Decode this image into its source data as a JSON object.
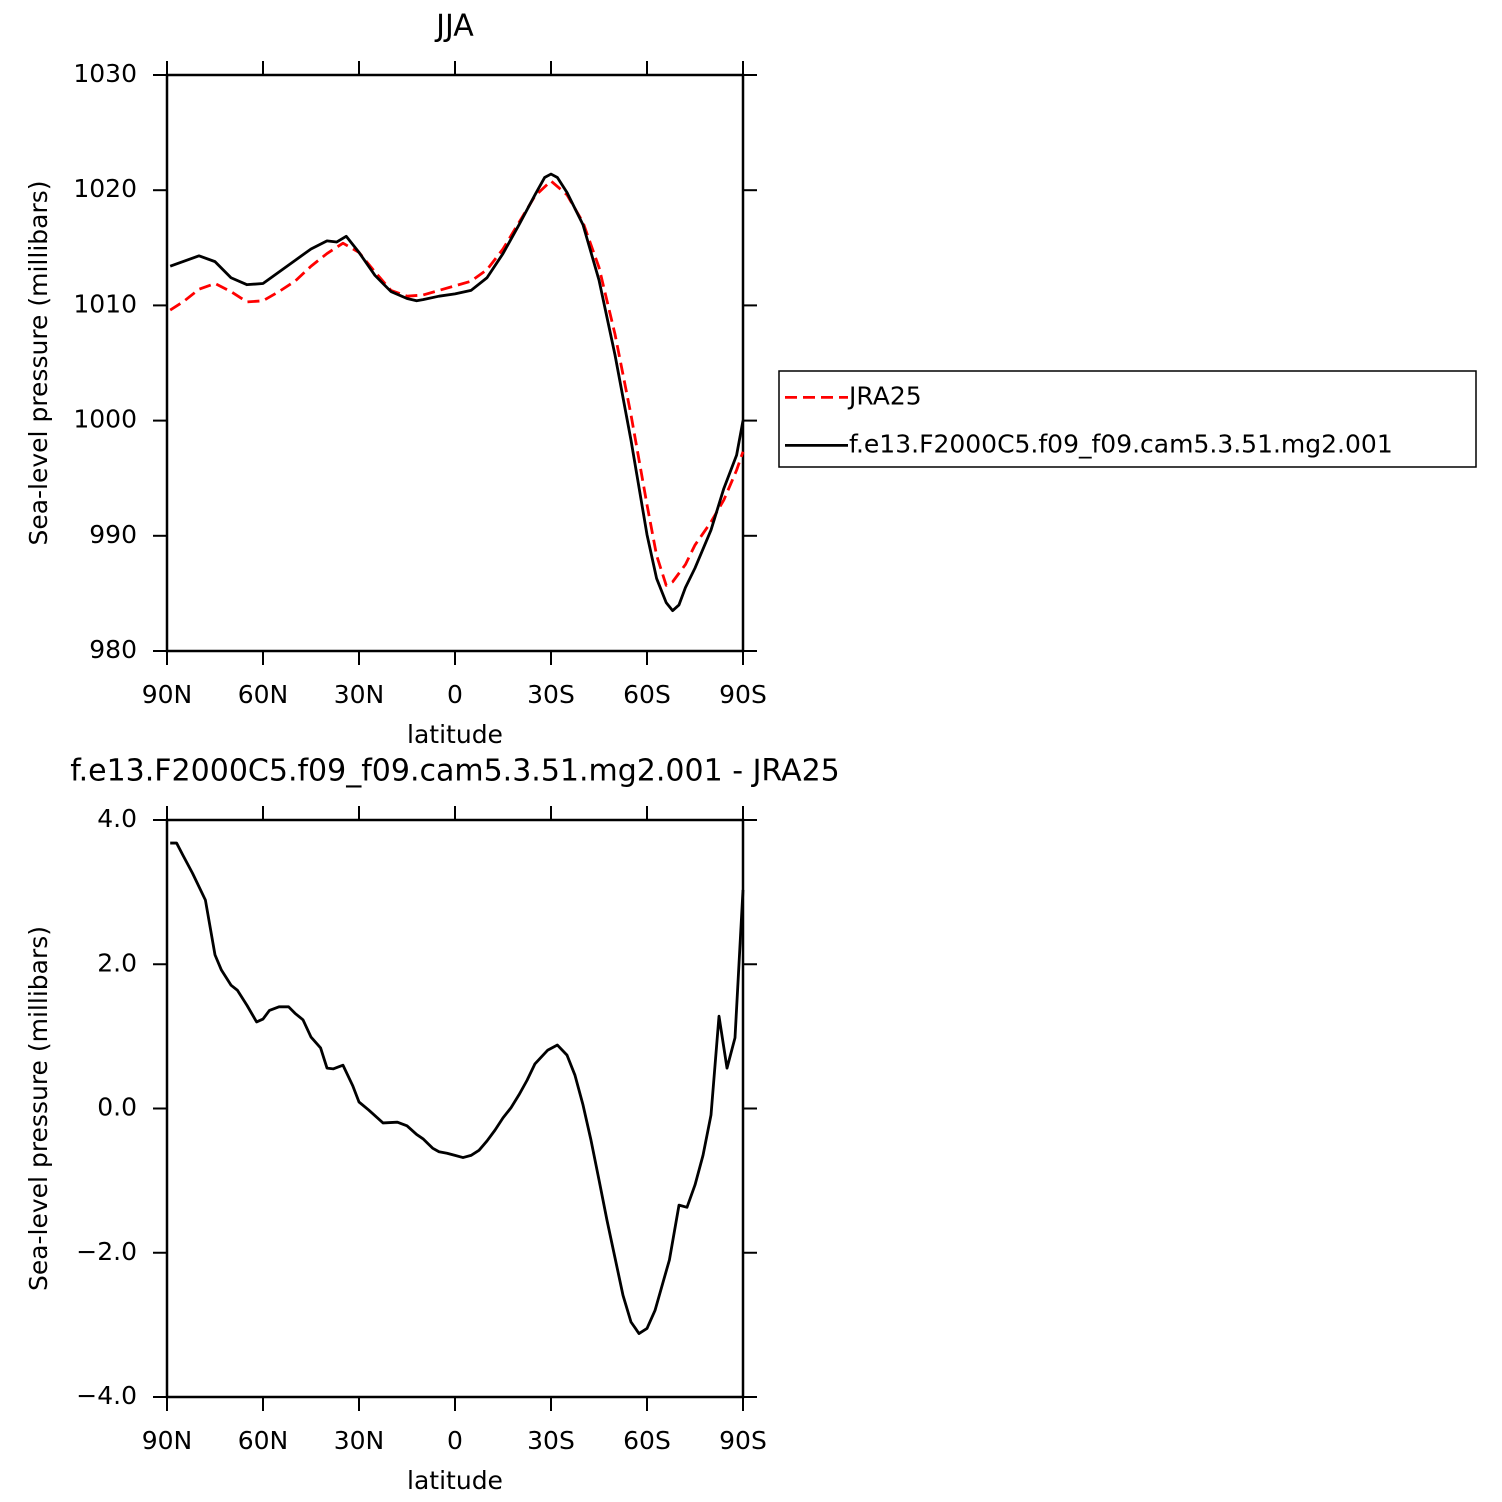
{
  "chart_data": [
    {
      "type": "line",
      "title": "JJA",
      "xlabel": "latitude",
      "ylabel": "Sea-level pressure (millibars)",
      "xlim": [
        90,
        -90
      ],
      "xticks": [
        {
          "value": 90,
          "label": "90N"
        },
        {
          "value": 60,
          "label": "60N"
        },
        {
          "value": 30,
          "label": "30N"
        },
        0,
        {
          "value": -30,
          "label": "30S"
        },
        {
          "value": -60,
          "label": "60S"
        },
        {
          "value": -90,
          "label": "90S"
        }
      ],
      "ylim": [
        980,
        1030
      ],
      "yticks": [
        980,
        990,
        1000,
        1010,
        1020,
        1030
      ],
      "legend": "right",
      "series": [
        {
          "name": "JRA25",
          "color": "#ff0000",
          "style": "dashed",
          "x": [
            89,
            85,
            80,
            75,
            70,
            65,
            60,
            55,
            50,
            45,
            40,
            35,
            30,
            25,
            20,
            15,
            10,
            5,
            0,
            -5,
            -10,
            -15,
            -20,
            -25,
            -30,
            -35,
            -40,
            -45,
            -50,
            -55,
            -60,
            -63,
            -66,
            -68,
            -72,
            -75,
            -80,
            -84,
            -88,
            -90
          ],
          "values": [
            1009.6,
            1010.3,
            1011.4,
            1011.9,
            1011.2,
            1010.3,
            1010.4,
            1011.2,
            1012.1,
            1013.4,
            1014.5,
            1015.4,
            1014.6,
            1012.9,
            1011.3,
            1010.8,
            1010.9,
            1011.3,
            1011.7,
            1012.1,
            1013.1,
            1014.9,
            1017.2,
            1019.5,
            1020.8,
            1019.6,
            1017.2,
            1013.3,
            1007.5,
            1000.5,
            992.7,
            988.3,
            985.7,
            986.0,
            987.5,
            989.2,
            991.2,
            993.1,
            995.7,
            997.3
          ]
        },
        {
          "name": "f.e13.F2000C5.f09_f09.cam5.3.51.mg2.001",
          "color": "#000000",
          "style": "solid",
          "x": [
            89,
            80,
            75,
            70,
            65,
            60,
            55,
            50,
            45,
            40,
            37,
            34,
            30,
            25,
            20,
            15,
            12,
            10,
            5,
            0,
            -5,
            -10,
            -15,
            -20,
            -25,
            -28,
            -30,
            -32,
            -35,
            -40,
            -45,
            -50,
            -55,
            -60,
            -63,
            -66,
            -68,
            -70,
            -72,
            -75,
            -80,
            -84,
            -88,
            -90
          ],
          "values": [
            1013.4,
            1014.3,
            1013.8,
            1012.4,
            1011.8,
            1011.9,
            1012.9,
            1013.9,
            1014.9,
            1015.6,
            1015.5,
            1016.0,
            1014.6,
            1012.6,
            1011.2,
            1010.6,
            1010.4,
            1010.5,
            1010.8,
            1011.0,
            1011.3,
            1012.4,
            1014.5,
            1017.0,
            1019.6,
            1021.1,
            1021.4,
            1021.1,
            1019.8,
            1017.0,
            1012.2,
            1005.7,
            998.3,
            990.1,
            986.3,
            984.2,
            983.5,
            984.0,
            985.5,
            987.2,
            990.5,
            994.1,
            997.0,
            1000.0
          ]
        }
      ]
    },
    {
      "type": "line",
      "title": "f.e13.F2000C5.f09_f09.cam5.3.51.mg2.001 - JRA25",
      "xlabel": "latitude",
      "ylabel": "Sea-level pressure (millibars)",
      "xlim": [
        90,
        -90
      ],
      "xticks": [
        {
          "value": 90,
          "label": "90N"
        },
        {
          "value": 60,
          "label": "60N"
        },
        {
          "value": 30,
          "label": "30N"
        },
        0,
        {
          "value": -30,
          "label": "30S"
        },
        {
          "value": -60,
          "label": "60S"
        },
        {
          "value": -90,
          "label": "90S"
        }
      ],
      "ylim": [
        -4,
        4
      ],
      "yticks": [
        {
          "value": -4,
          "label": "−4.0"
        },
        {
          "value": -2,
          "label": "−2.0"
        },
        {
          "value": 0,
          "label": "0.0"
        },
        {
          "value": 2,
          "label": "2.0"
        },
        {
          "value": 4,
          "label": "4.0"
        }
      ],
      "series": [
        {
          "color": "#000000",
          "style": "solid",
          "x": [
            89,
            87,
            85,
            82,
            78,
            75,
            73,
            70,
            68,
            65,
            62,
            60,
            58,
            55,
            52,
            50,
            47.5,
            45,
            42,
            40,
            38,
            35,
            32,
            30,
            27,
            22.5,
            18,
            15,
            12,
            10,
            7,
            5,
            2.5,
            0,
            -2.5,
            -5,
            -7.5,
            -10,
            -12.5,
            -15,
            -17.5,
            -20,
            -22.5,
            -25,
            -29,
            -32,
            -35,
            -37.5,
            -40,
            -42.5,
            -45,
            -47.5,
            -50,
            -52.5,
            -55,
            -57.5,
            -60,
            -62.5,
            -65,
            -67,
            -70,
            -72.5,
            -75,
            -77.5,
            -80,
            -82.5,
            -85,
            -87.5,
            -90
          ],
          "values": [
            3.68,
            3.68,
            3.51,
            3.26,
            2.89,
            2.13,
            1.92,
            1.71,
            1.64,
            1.43,
            1.2,
            1.24,
            1.36,
            1.41,
            1.41,
            1.32,
            1.23,
            0.99,
            0.84,
            0.56,
            0.55,
            0.6,
            0.32,
            0.09,
            -0.02,
            -0.2,
            -0.19,
            -0.24,
            -0.36,
            -0.42,
            -0.55,
            -0.6,
            -0.62,
            -0.65,
            -0.68,
            -0.65,
            -0.58,
            -0.45,
            -0.3,
            -0.13,
            0.01,
            0.19,
            0.39,
            0.62,
            0.81,
            0.88,
            0.74,
            0.46,
            0.05,
            -0.44,
            -0.99,
            -1.55,
            -2.07,
            -2.59,
            -2.96,
            -3.12,
            -3.05,
            -2.8,
            -2.41,
            -2.1,
            -1.34,
            -1.37,
            -1.06,
            -0.65,
            -0.09,
            1.28,
            0.56,
            0.98,
            3.03
          ]
        }
      ]
    }
  ]
}
